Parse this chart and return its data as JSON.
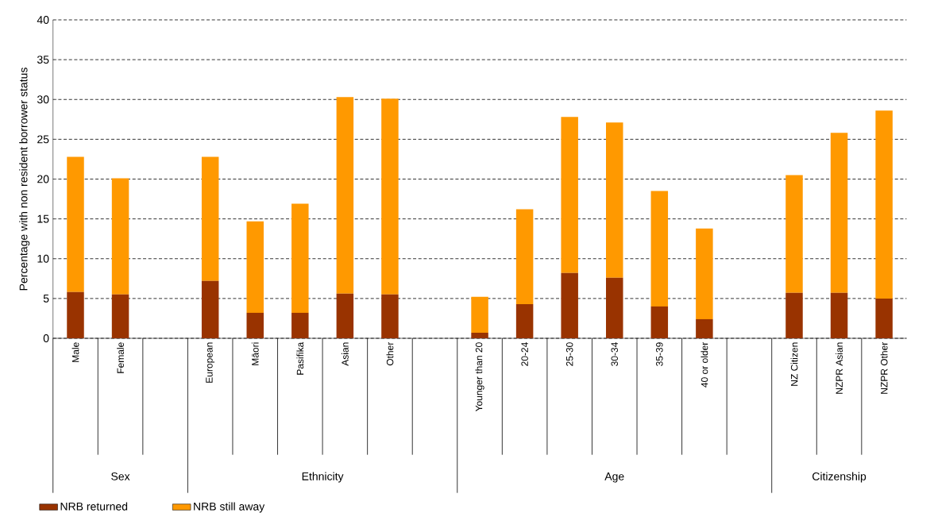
{
  "chart_data": {
    "type": "bar",
    "stacked": true,
    "ylabel": "Percentage with non resident borrower status",
    "categories": [
      "Male",
      "Female",
      null,
      "European",
      "Māori",
      "Pasifika",
      "Asian",
      "Other",
      null,
      "Younger than 20",
      "20-24",
      "25-30",
      "30-34",
      "35-39",
      "40 or older",
      null,
      "NZ Citizen",
      "NZPR Asian",
      "NZPR Other"
    ],
    "series": [
      {
        "name": "NRB returned",
        "color": "#993300",
        "values": [
          5.8,
          5.5,
          null,
          7.2,
          3.2,
          3.2,
          5.6,
          5.5,
          null,
          0.7,
          4.3,
          8.2,
          7.6,
          4.0,
          2.4,
          null,
          5.7,
          5.7,
          5.0
        ]
      },
      {
        "name": "NRB still away",
        "color": "#ff9900",
        "values": [
          17.0,
          14.6,
          null,
          15.6,
          11.5,
          13.7,
          24.7,
          24.6,
          null,
          4.5,
          11.9,
          19.6,
          19.5,
          14.5,
          11.4,
          null,
          14.8,
          20.1,
          23.6
        ]
      }
    ],
    "annotations": [
      "Sex",
      "Ethnicity",
      "Age",
      "Citizenship"
    ],
    "ylim": [
      0,
      40
    ],
    "yticks": [
      0,
      5,
      10,
      15,
      20,
      25,
      30,
      35,
      40
    ],
    "grid": "y",
    "legend": "bottom"
  }
}
